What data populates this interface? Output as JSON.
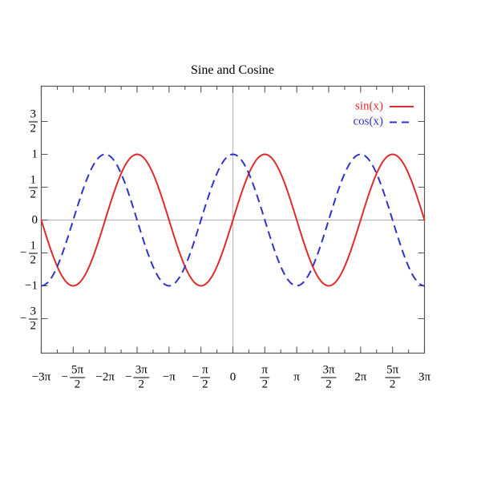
{
  "chart_data": {
    "type": "line",
    "title": "Sine and Cosine",
    "x_axis": {
      "unit": "pi",
      "min_pi": -3,
      "max_pi": 3,
      "major_step_pi": 0.5,
      "minor_step_pi": 0.25
    },
    "y_axis": {
      "min": -2,
      "max": 2.05,
      "major_step": 0.5
    },
    "series": [
      {
        "name": "sin(x)",
        "fn": "sin",
        "color": "#dd2c2c",
        "line_style": "solid",
        "amplitude": 1,
        "period_pi": 2
      },
      {
        "name": "cos(x)",
        "fn": "cos",
        "color": "#3232c8",
        "line_style": "dashed",
        "amplitude": 1,
        "period_pi": 2
      }
    ],
    "x_ticks": [
      {
        "pi": -3,
        "label": {
          "text": "−3π"
        }
      },
      {
        "pi": -2.5,
        "label": {
          "sign": "−",
          "num": "5π",
          "den": "2"
        }
      },
      {
        "pi": -2,
        "label": {
          "text": "−2π"
        }
      },
      {
        "pi": -1.5,
        "label": {
          "sign": "−",
          "num": "3π",
          "den": "2"
        }
      },
      {
        "pi": -1,
        "label": {
          "text": "−π"
        }
      },
      {
        "pi": -0.5,
        "label": {
          "sign": "−",
          "num": "π",
          "den": "2"
        }
      },
      {
        "pi": 0,
        "label": {
          "text": "0"
        }
      },
      {
        "pi": 0.5,
        "label": {
          "num": "π",
          "den": "2"
        }
      },
      {
        "pi": 1,
        "label": {
          "text": "π"
        }
      },
      {
        "pi": 1.5,
        "label": {
          "num": "3π",
          "den": "2"
        }
      },
      {
        "pi": 2,
        "label": {
          "text": "2π"
        }
      },
      {
        "pi": 2.5,
        "label": {
          "num": "5π",
          "den": "2"
        }
      },
      {
        "pi": 3,
        "label": {
          "text": "3π"
        }
      }
    ],
    "y_ticks": [
      {
        "v": 1.5,
        "label": {
          "num": "3",
          "den": "2"
        }
      },
      {
        "v": 1,
        "label": {
          "text": "1"
        }
      },
      {
        "v": 0.5,
        "label": {
          "num": "1",
          "den": "2"
        }
      },
      {
        "v": 0,
        "label": {
          "text": "0"
        }
      },
      {
        "v": -0.5,
        "label": {
          "sign": "−",
          "num": "1",
          "den": "2"
        }
      },
      {
        "v": -1,
        "label": {
          "text": "−1"
        }
      },
      {
        "v": -1.5,
        "label": {
          "sign": "−",
          "num": "3",
          "den": "2"
        }
      }
    ],
    "zero_axis_lines": true,
    "grid": false,
    "legend_position": "top-right"
  },
  "colors": {
    "background": "#ffffff",
    "axis": "#555555",
    "zero_line": "#b9b9b9",
    "text": "#000000"
  }
}
